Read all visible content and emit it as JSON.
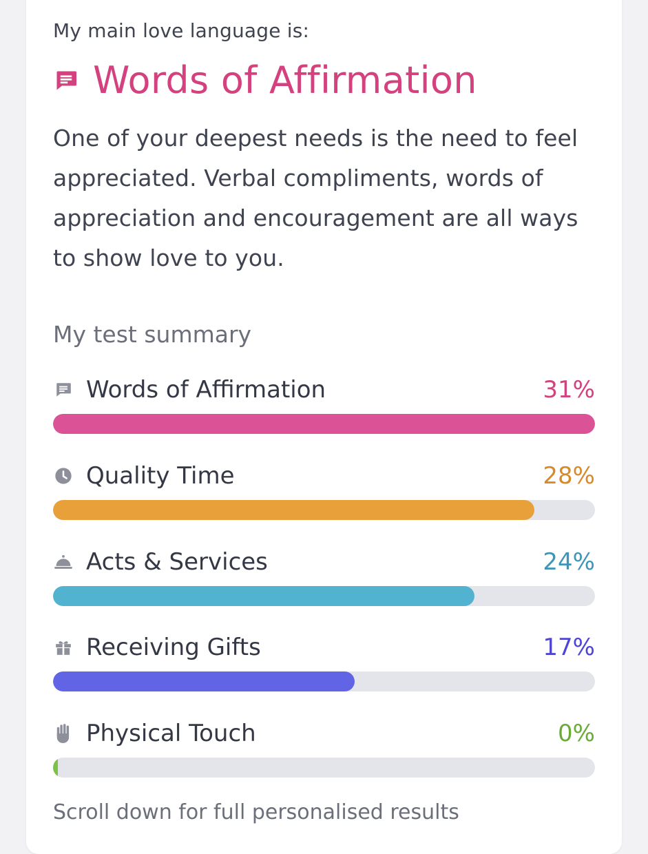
{
  "main_title": {
    "intro": "My main love language is:",
    "language": "Words of Affirmation",
    "icon": "message-icon",
    "color": "#d3417f"
  },
  "description": "One of your deepest needs is the need to feel appreciated. Verbal compliments, words of appreciation and encouragement are all ways to show love to you.",
  "summary": {
    "title": "My test summary",
    "items": [
      {
        "label": "Words of Affirmation",
        "percent_text": "31%",
        "fill": 1.0,
        "color": "#db5296",
        "text_color": "#d3417f",
        "icon": "message-icon"
      },
      {
        "label": "Quality Time",
        "percent_text": "28%",
        "fill": 0.888,
        "color": "#e8a03a",
        "text_color": "#d88a2a",
        "icon": "clock-icon"
      },
      {
        "label": "Acts & Services",
        "percent_text": "24%",
        "fill": 0.778,
        "color": "#52b3d1",
        "text_color": "#3f95b8",
        "icon": "service-bell-icon"
      },
      {
        "label": "Receiving Gifts",
        "percent_text": "17%",
        "fill": 0.556,
        "color": "#6164e4",
        "text_color": "#4d45d6",
        "icon": "gift-icon"
      },
      {
        "label": "Physical Touch",
        "percent_text": "0%",
        "fill": 0.0,
        "color": "#7cc243",
        "text_color": "#6aab37",
        "icon": "hand-icon"
      }
    ]
  },
  "footer_text": "Scroll down for full personalised results"
}
